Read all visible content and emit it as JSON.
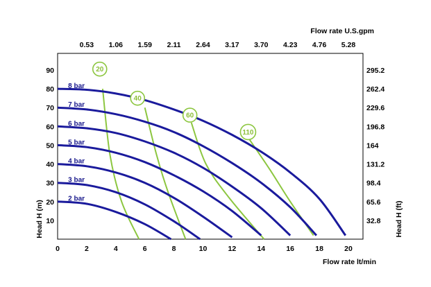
{
  "chart_data": {
    "type": "line",
    "x_bottom": {
      "label": "Flow rate  lt/min",
      "range": [
        0,
        20
      ],
      "ticks": [
        "0",
        "2",
        "4",
        "6",
        "8",
        "10",
        "12",
        "14",
        "16",
        "18",
        "20"
      ]
    },
    "x_top": {
      "label": "Flow rate U.S.gpm",
      "ticks": [
        "0.53",
        "1.06",
        "1.59",
        "2.11",
        "2.64",
        "3.17",
        "3.70",
        "4.23",
        "4.76",
        "5.28"
      ]
    },
    "y_left": {
      "label": "Head H (m)",
      "range": [
        0,
        90
      ],
      "ticks": [
        "10",
        "20",
        "30",
        "40",
        "50",
        "60",
        "70",
        "80",
        "90"
      ]
    },
    "y_right": {
      "label": "Head H (ft)",
      "ticks": [
        "32.8",
        "65.6",
        "98.4",
        "131.2",
        "164",
        "196.8",
        "229.6",
        "262.4",
        "295.2"
      ]
    },
    "series": [
      {
        "name": "2 bar",
        "color": "#1a1a9c",
        "x": [
          0,
          2,
          4,
          6,
          7.8
        ],
        "y": [
          20,
          18.8,
          14.5,
          8,
          0
        ]
      },
      {
        "name": "3 bar",
        "color": "#1a1a9c",
        "x": [
          0,
          2,
          4,
          6,
          8,
          9.8
        ],
        "y": [
          30,
          28.8,
          25,
          18.5,
          9.5,
          0
        ]
      },
      {
        "name": "4 bar",
        "color": "#1a1a9c",
        "x": [
          0,
          2,
          4,
          6,
          8,
          10,
          12
        ],
        "y": [
          40,
          38.8,
          35.5,
          30,
          22,
          12,
          1
        ]
      },
      {
        "name": "5 bar",
        "color": "#1a1a9c",
        "x": [
          0,
          2,
          4,
          6,
          8,
          10,
          12,
          14
        ],
        "y": [
          50,
          49,
          46,
          41,
          34,
          25.5,
          15,
          2
        ]
      },
      {
        "name": "6 bar",
        "color": "#1a1a9c",
        "x": [
          0,
          2,
          4,
          6,
          8,
          10,
          12,
          14,
          16
        ],
        "y": [
          60,
          59,
          56.5,
          52,
          46,
          38,
          28,
          16.5,
          2
        ]
      },
      {
        "name": "7 bar",
        "color": "#1a1a9c",
        "x": [
          0,
          2,
          4,
          6,
          8,
          10,
          12,
          14,
          16,
          17.8
        ],
        "y": [
          70,
          69,
          66.5,
          62.5,
          57,
          49.5,
          40.5,
          30,
          17,
          2
        ]
      },
      {
        "name": "8 bar",
        "color": "#1a1a9c",
        "x": [
          0,
          2,
          4,
          6,
          8,
          10,
          12,
          14,
          16,
          18,
          19.8
        ],
        "y": [
          80,
          79.5,
          77.5,
          74,
          69,
          63,
          55.5,
          46.5,
          35.5,
          21.5,
          2
        ]
      }
    ],
    "air_curves": [
      {
        "name": "20",
        "color": "#8cc63f",
        "x": [
          3.1,
          3.6,
          4.4,
          5.6
        ],
        "y": [
          80,
          45,
          20,
          0
        ]
      },
      {
        "name": "40",
        "color": "#8cc63f",
        "x": [
          6.0,
          6.8,
          7.6,
          8.8
        ],
        "y": [
          70,
          45,
          25,
          0
        ]
      },
      {
        "name": "60",
        "color": "#8cc63f",
        "x": [
          9.2,
          10.2,
          11.8,
          14.2
        ],
        "y": [
          62,
          40,
          22,
          0
        ]
      },
      {
        "name": "110",
        "color": "#8cc63f",
        "x": [
          13.2,
          14.6,
          16.0,
          17.6
        ],
        "y": [
          53,
          37,
          20,
          2
        ]
      }
    ],
    "air_label_positions": [
      {
        "x": 2.9,
        "y": 90.5
      },
      {
        "x": 5.5,
        "y": 75
      },
      {
        "x": 9.1,
        "y": 66
      },
      {
        "x": 13.1,
        "y": 57
      }
    ],
    "bar_label_positions": [
      {
        "x": 1.2,
        "y": 21.5
      },
      {
        "x": 1.2,
        "y": 31.5
      },
      {
        "x": 1.2,
        "y": 41.5
      },
      {
        "x": 1.2,
        "y": 51.5
      },
      {
        "x": 1.2,
        "y": 61.5
      },
      {
        "x": 1.2,
        "y": 71.5
      },
      {
        "x": 1.2,
        "y": 81.5
      }
    ],
    "grid": false,
    "legend": "inline labels on curves"
  }
}
